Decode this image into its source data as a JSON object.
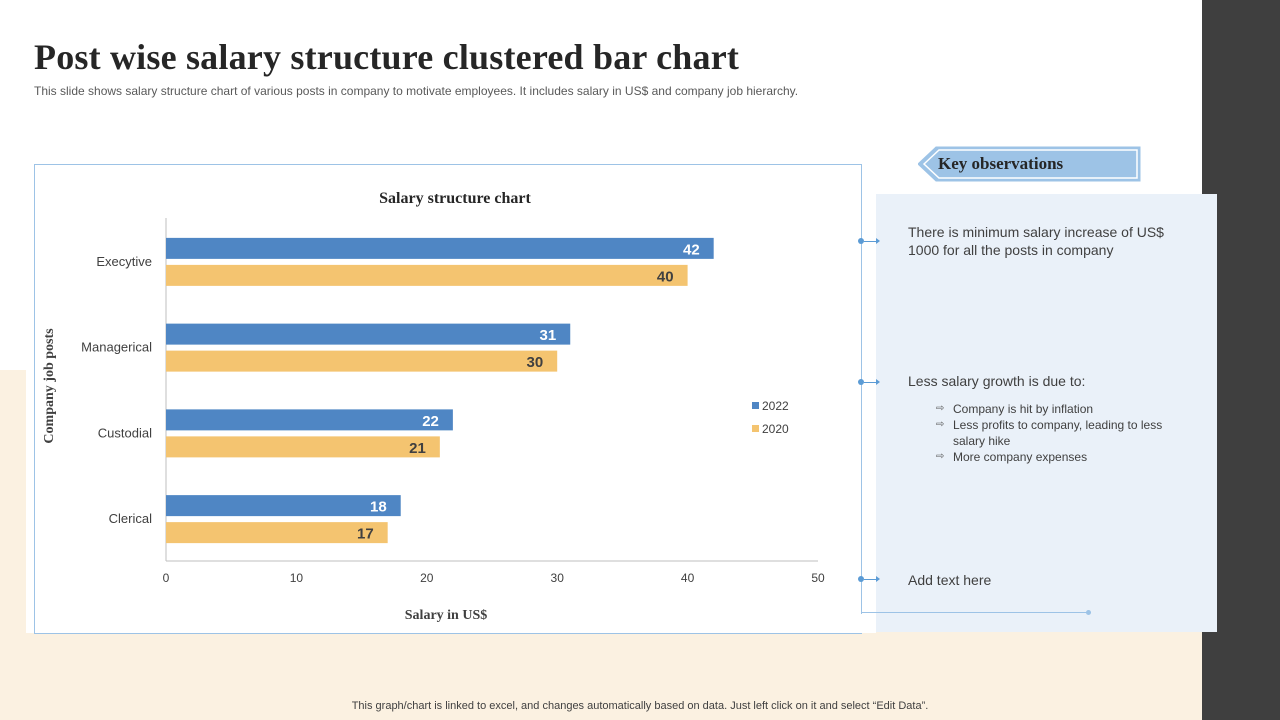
{
  "title": "Post wise salary structure clustered bar chart",
  "subtitle": "This slide shows salary structure chart of various  posts in company to motivate  employees.  It includes salary in US$ and company job hierarchy.",
  "colors": {
    "series_2022": "#4f86c4",
    "series_2020": "#f4c470",
    "accent": "#5b9bd5",
    "panel": "#eaf1f9",
    "cream": "#fbf1e1"
  },
  "chart_data": {
    "type": "bar",
    "orientation": "horizontal",
    "title": "Salary structure chart",
    "xlabel": "Salary in US$",
    "ylabel": "Company job posts",
    "categories": [
      "Execytive",
      "Managerical",
      "Custodial",
      "Clerical"
    ],
    "series": [
      {
        "name": "2022",
        "values": [
          42,
          31,
          22,
          18
        ],
        "color": "#4f86c4"
      },
      {
        "name": "2020",
        "values": [
          40,
          30,
          21,
          17
        ],
        "color": "#f4c470"
      }
    ],
    "xlim": [
      0,
      50
    ],
    "xticks": [
      "0",
      "10",
      "20",
      "30",
      "40",
      "50"
    ],
    "grid": false,
    "legend": "right"
  },
  "observations": {
    "heading": "Key observations",
    "item1": "There is minimum salary increase of US$ 1000 for all the posts in company",
    "item2": "Less salary growth is due to:",
    "bullets": [
      "Company is hit by inflation",
      "Less profits to company, leading to less salary hike",
      "More company expenses"
    ],
    "item3": "Add text here"
  },
  "footer": "This graph/chart is linked to excel,  and changes automatically based on data. Just left click on it and select “Edit Data”."
}
